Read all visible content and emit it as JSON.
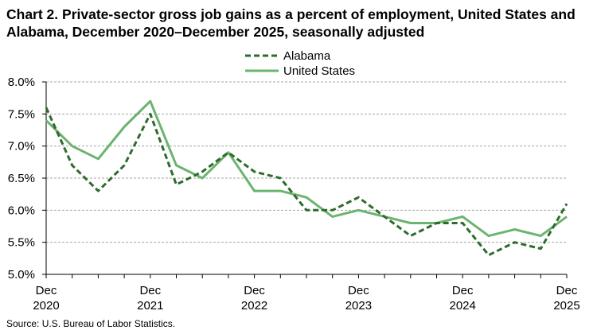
{
  "title": "Chart 2. Private-sector gross job gains as a percent of employment, United States and Alabama, December 2020–December 2025, seasonally adjusted",
  "source": "Source: U.S. Bureau of Labor Statistics.",
  "chart_data": {
    "type": "line",
    "title": "Chart 2. Private-sector gross job gains as a percent of employment, United States and Alabama, December 2020–December 2025, seasonally adjusted",
    "xlabel": "",
    "ylabel": "",
    "ylim": [
      5.0,
      8.0
    ],
    "yticks": [
      "5.0%",
      "5.5%",
      "6.0%",
      "6.5%",
      "7.0%",
      "7.5%",
      "8.0%"
    ],
    "ytick_values": [
      5.0,
      5.5,
      6.0,
      6.5,
      7.0,
      7.5,
      8.0
    ],
    "x": [
      "Dec 2020",
      "Mar 2021",
      "Jun 2021",
      "Sep 2021",
      "Dec 2021",
      "Mar 2022",
      "Jun 2022",
      "Sep 2022",
      "Dec 2022",
      "Mar 2023",
      "Jun 2023",
      "Sep 2023",
      "Dec 2023",
      "Mar 2024",
      "Jun 2024",
      "Sep 2024",
      "Dec 2024",
      "Mar 2025",
      "Jun 2025",
      "Sep 2025",
      "Dec 2025"
    ],
    "xtick_labels": [
      {
        "month": "Dec",
        "year": "2020",
        "index": 0
      },
      {
        "month": "Dec",
        "year": "2021",
        "index": 4
      },
      {
        "month": "Dec",
        "year": "2022",
        "index": 8
      },
      {
        "month": "Dec",
        "year": "2023",
        "index": 12
      },
      {
        "month": "Dec",
        "year": "2024",
        "index": 16
      },
      {
        "month": "Dec",
        "year": "2025",
        "index": 20
      }
    ],
    "grid": true,
    "legend_position": "top-center",
    "series": [
      {
        "name": "Alabama",
        "style": "dashed",
        "color": "#2e6b2e",
        "values": [
          7.6,
          6.7,
          6.3,
          6.7,
          7.5,
          6.4,
          6.6,
          6.9,
          6.6,
          6.5,
          6.0,
          6.0,
          6.2,
          5.9,
          5.6,
          5.8,
          5.8,
          5.3,
          5.5,
          5.4,
          6.1
        ]
      },
      {
        "name": "United States",
        "style": "solid",
        "color": "#6bb46f",
        "values": [
          7.4,
          7.0,
          6.8,
          7.3,
          7.7,
          6.7,
          6.5,
          6.9,
          6.3,
          6.3,
          6.2,
          5.9,
          6.0,
          5.9,
          5.8,
          5.8,
          5.9,
          5.6,
          5.7,
          5.6,
          5.9
        ]
      }
    ]
  }
}
